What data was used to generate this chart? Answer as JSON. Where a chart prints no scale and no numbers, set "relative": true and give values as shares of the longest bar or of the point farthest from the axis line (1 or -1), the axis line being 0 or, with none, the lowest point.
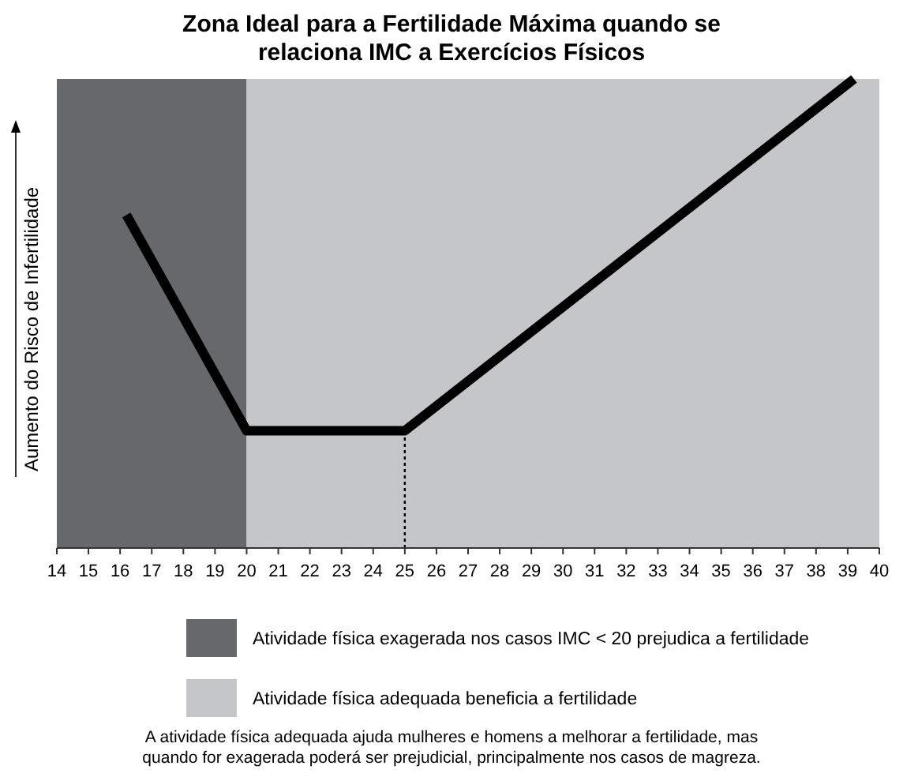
{
  "chart_data": {
    "type": "line",
    "title": "Zona Ideal para a Fertilidade Máxima quando se\nrelaciona IMC a Exercícios Físicos",
    "ylabel": "Aumento do Risco de Infertilidade",
    "relative": true,
    "xlim": [
      14,
      40
    ],
    "xticks": [
      14,
      15,
      16,
      17,
      18,
      19,
      20,
      21,
      22,
      23,
      24,
      25,
      26,
      27,
      28,
      29,
      30,
      31,
      32,
      33,
      34,
      35,
      36,
      37,
      38,
      39,
      40
    ],
    "series": [
      {
        "color": "#000000",
        "x": [
          16.2,
          20,
          25,
          39.2
        ],
        "values": [
          0.71,
          0.25,
          0.25,
          1
        ]
      }
    ],
    "bands": [
      {
        "axis": "x",
        "from": 14,
        "to": 20,
        "label": "Atividade física exagerada nos casos IMC < 20 prejudica a fertilidade",
        "color": "#66686c"
      },
      {
        "axis": "x",
        "from": 20,
        "to": 40,
        "label": "Atividade física adequada beneficia a fertilidade",
        "color": "#c5c6ca"
      }
    ],
    "ref_lines": [
      {
        "axis": "x",
        "value": 25,
        "line_style": "dotted",
        "color": "#000000"
      }
    ],
    "legend": "bottom",
    "grid": false,
    "annotations": [
      "A atividade física adequada ajuda mulheres e homens a melhorar a fertilidade, mas\nquando for exagerada poderá ser prejudicial, principalmente nos casos de magreza."
    ]
  }
}
